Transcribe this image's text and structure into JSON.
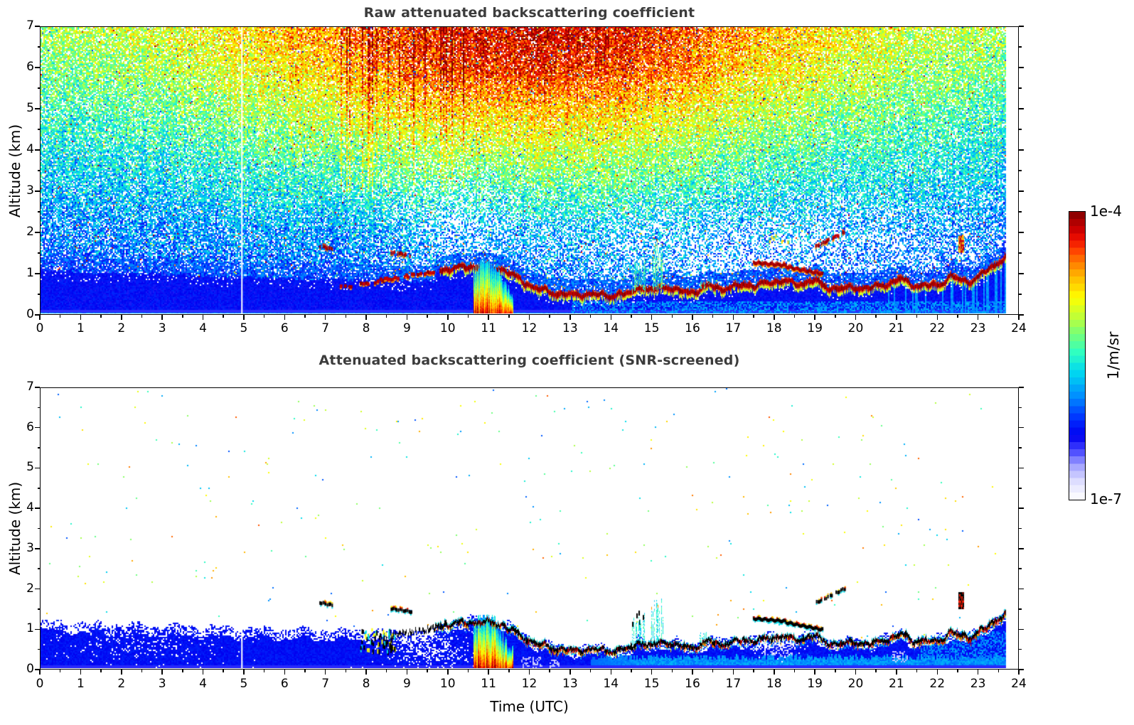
{
  "chart_data": {
    "type": "heatmap",
    "panels": [
      {
        "title": "Raw attenuated backscattering coefficient",
        "description": "Full-range multicolour speckle noise over 0-7 km; noise value increases with altitude and peaks (orange/red) between about 08 and 17 UTC above 4 km, greener/cyan near 0 UTC and after 19 UTC; solid blue boundary-layer aerosol signal below about 1 km with a near-saturated dark-red aerosol-top line"
      },
      {
        "title": "Attenuated backscattering coefficient (SNR-screened)",
        "description": "Same scene after SNR screening (noise removed, white background); remaining signal: blue boundary-layer aerosol below about 1.2 km, the saturated aerosol-top line rendered black with coloured fringes, a strong surface plume at 10.7-11.6 UTC and sparse elevated layers"
      }
    ],
    "x_axis": {
      "label": "Time (UTC)",
      "range": [
        0,
        24
      ],
      "major_tick_step": 1,
      "minor_tick_step": 0.5
    },
    "y_axis": {
      "label": "Altitude (km)",
      "range": [
        0,
        7
      ],
      "major_tick_step": 1,
      "minor_tick_step": 0.5
    },
    "colorbar": {
      "max_label": "1e-4",
      "min_label": "1e-7",
      "unit": "1/m/sr",
      "scale": "logarithmic",
      "discrete_steps": 40,
      "colormap_stops": [
        {
          "v": 0.0,
          "color": "#ffffff"
        },
        {
          "v": 0.05,
          "color": "#e4e4ff"
        },
        {
          "v": 0.09,
          "color": "#c2c2ff"
        },
        {
          "v": 0.13,
          "color": "#9090ff"
        },
        {
          "v": 0.17,
          "color": "#4040ff"
        },
        {
          "v": 0.22,
          "color": "#0000f0"
        },
        {
          "v": 0.28,
          "color": "#0030ff"
        },
        {
          "v": 0.36,
          "color": "#0090ff"
        },
        {
          "v": 0.44,
          "color": "#00d8f0"
        },
        {
          "v": 0.51,
          "color": "#30ffc0"
        },
        {
          "v": 0.58,
          "color": "#80ff70"
        },
        {
          "v": 0.64,
          "color": "#c8ff30"
        },
        {
          "v": 0.7,
          "color": "#ffff00"
        },
        {
          "v": 0.76,
          "color": "#ffc400"
        },
        {
          "v": 0.82,
          "color": "#ff8000"
        },
        {
          "v": 0.87,
          "color": "#ff3400"
        },
        {
          "v": 0.92,
          "color": "#df0000"
        },
        {
          "v": 0.96,
          "color": "#b00000"
        },
        {
          "v": 1.0,
          "color": "#7c0000"
        }
      ]
    },
    "boundary_layer_top_km": {
      "t_utc": [
        9.8,
        10.1,
        10.4,
        10.7,
        11.0,
        11.3,
        11.55,
        11.8,
        12.0,
        12.2,
        12.5,
        12.8,
        13.1,
        13.4,
        13.7,
        14.0,
        14.3,
        14.55,
        14.7,
        14.85,
        15.1,
        15.35,
        15.6,
        15.9,
        16.2,
        16.45,
        16.7,
        17.0,
        17.3,
        17.55,
        17.8,
        18.05,
        18.3,
        18.55,
        18.8,
        19.0,
        19.2,
        19.45,
        19.7,
        20.0,
        20.3,
        20.6,
        20.9,
        21.15,
        21.4,
        21.6,
        21.85,
        22.1,
        22.35,
        22.6,
        22.85,
        23.05,
        23.25,
        23.45,
        23.6,
        23.72
      ],
      "alt_km": [
        1.05,
        1.1,
        1.13,
        1.15,
        1.14,
        1.1,
        0.97,
        0.8,
        0.7,
        0.6,
        0.52,
        0.47,
        0.44,
        0.48,
        0.45,
        0.43,
        0.47,
        0.5,
        0.72,
        0.55,
        0.58,
        0.68,
        0.55,
        0.52,
        0.57,
        0.7,
        0.6,
        0.63,
        0.72,
        0.68,
        0.73,
        0.78,
        0.8,
        0.7,
        0.76,
        0.82,
        0.68,
        0.62,
        0.6,
        0.65,
        0.6,
        0.68,
        0.74,
        0.85,
        0.72,
        0.66,
        0.68,
        0.72,
        0.9,
        0.82,
        0.78,
        0.9,
        1.05,
        1.2,
        1.3,
        1.38
      ]
    },
    "background_blue_layer_top_km": {
      "t_utc": [
        0,
        5,
        9.7
      ],
      "alt_km": [
        1.07,
        0.9,
        0.8
      ]
    },
    "pre_noon_rising_layer": {
      "t_utc": [
        7.35,
        9.8
      ],
      "alt_km": [
        0.65,
        1.05
      ],
      "style": "intermittent"
    },
    "surface_plume": {
      "t_utc": [
        10.65,
        11.6
      ],
      "peak_top_km": 1.32
    },
    "updrafts": [
      {
        "t_utc": [
          14.55,
          14.85
        ],
        "top_km": 1.4
      },
      {
        "t_utc": [
          15.0,
          15.3
        ],
        "top_km": 1.75
      },
      {
        "t_utc": [
          16.2,
          16.45
        ],
        "top_km": 0.95
      }
    ],
    "elevated_layers": [
      {
        "t_utc": [
          6.85,
          7.15
        ],
        "alt_km": [
          1.65,
          1.58
        ],
        "style": "dashed"
      },
      {
        "t_utc": [
          8.6,
          9.1
        ],
        "alt_km": [
          1.5,
          1.42
        ],
        "style": "dashed"
      },
      {
        "t_utc": [
          17.5,
          18.3
        ],
        "alt_km": [
          1.25,
          1.18
        ],
        "style": "solid"
      },
      {
        "t_utc": [
          18.3,
          19.2
        ],
        "alt_km": [
          1.15,
          0.97
        ],
        "style": "solid"
      },
      {
        "t_utc": [
          18.95,
          19.75
        ],
        "alt_km": [
          1.6,
          2.0
        ],
        "style": "dashed"
      },
      {
        "t_utc": [
          22.55,
          22.65
        ],
        "alt_km": [
          1.5,
          1.9
        ],
        "style": "vertical"
      }
    ],
    "mixed_surface_dashes": {
      "t_utc": [
        7.85,
        8.7
      ],
      "alt_km": [
        0.45,
        1.0
      ]
    },
    "data_gap_t_utc": 4.93,
    "data_end_t_utc": 23.72
  }
}
